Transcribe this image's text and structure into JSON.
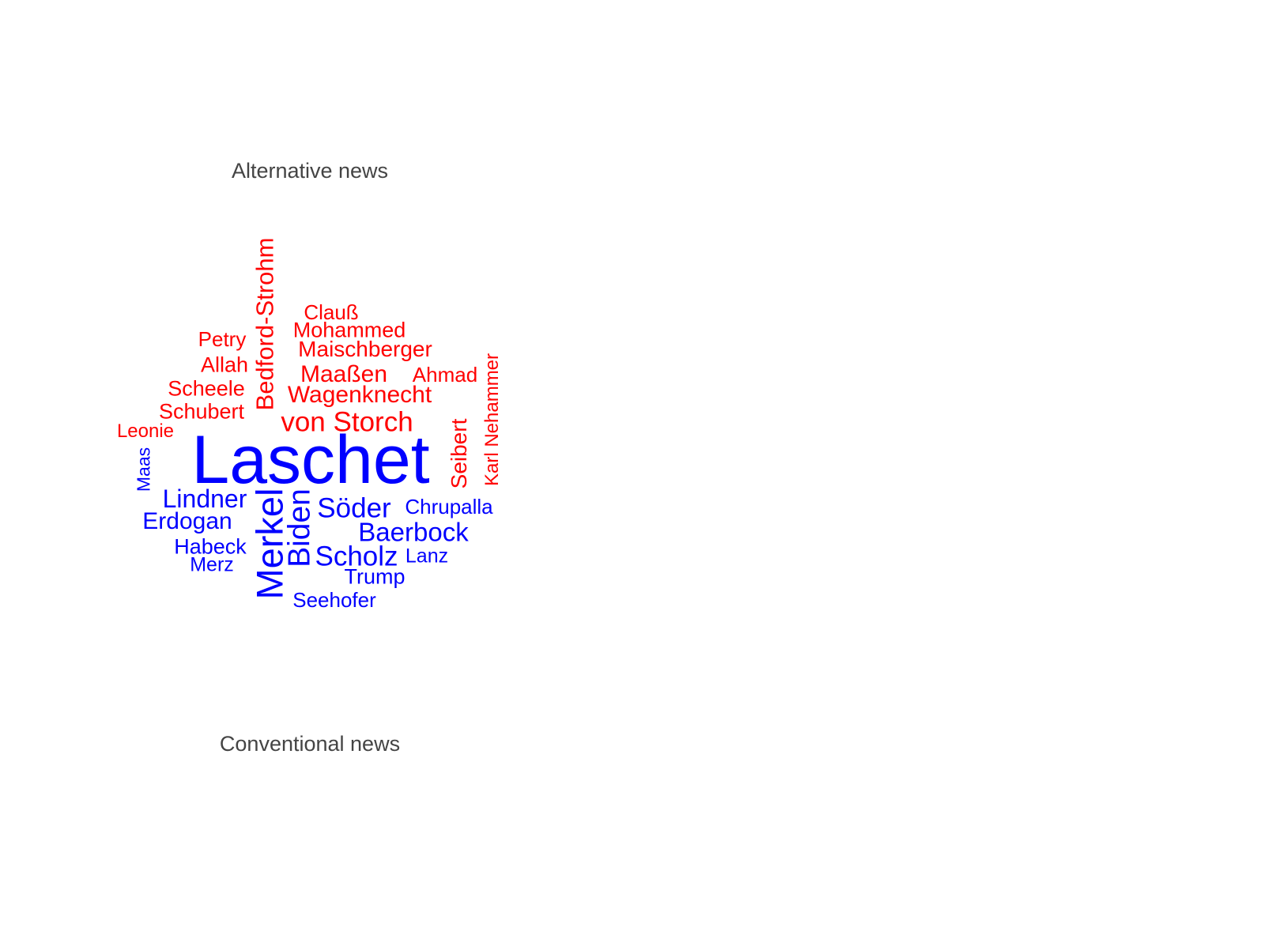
{
  "groups": {
    "alternative": {
      "label": "Alternative news",
      "color": "#ff0000"
    },
    "conventional": {
      "label": "Conventional news",
      "color": "#0000ff"
    }
  },
  "words": {
    "laschet": "Laschet",
    "merkel": "Merkel",
    "biden": "Biden",
    "soeder": "Söder",
    "scholz": "Scholz",
    "baerbock": "Baerbock",
    "lindner": "Lindner",
    "erdogan": "Erdogan",
    "chrupalla": "Chrupalla",
    "habeck": "Habeck",
    "trump": "Trump",
    "seehofer": "Seehofer",
    "merz": "Merz",
    "lanz": "Lanz",
    "maas": "Maas",
    "von_storch": "von Storch",
    "bedford_strohm": "Bedford-Strohm",
    "wagenknecht": "Wagenknecht",
    "maassen": "Maaßen",
    "maischberger": "Maischberger",
    "mohammed": "Mohammed",
    "schubert": "Schubert",
    "scheele": "Scheele",
    "allah": "Allah",
    "petry": "Petry",
    "clauss": "Clauß",
    "ahmad": "Ahmad",
    "seibert": "Seibert",
    "karl_nehammer": "Karl Nehammer",
    "leonie": "Leonie"
  }
}
